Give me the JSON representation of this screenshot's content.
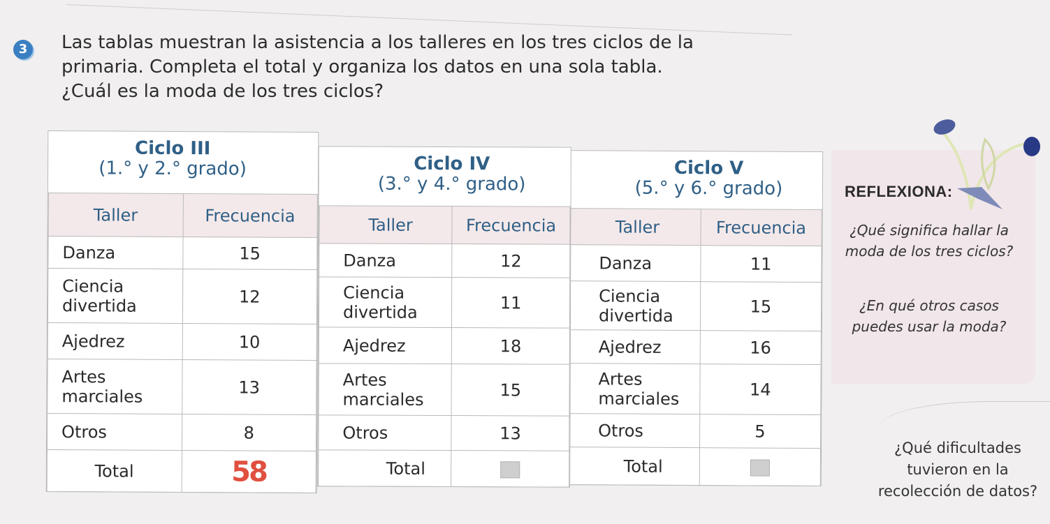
{
  "exercise": {
    "number": "3",
    "lines": [
      "Las tablas muestran la asistencia a los talleres en los tres ciclos de la",
      "primaria. Completa el total y organiza los datos en una sola tabla.",
      "¿Cuál es la moda de los tres ciclos?"
    ]
  },
  "tables": [
    {
      "name": "Ciclo III",
      "grades": "(1.° y 2.° grado)",
      "col_taller": "Taller",
      "col_frecuencia": "Frecuencia",
      "rows": [
        {
          "taller": "Danza",
          "frecuencia": "15"
        },
        {
          "taller": "Ciencia divertida",
          "frecuencia": "12"
        },
        {
          "taller": "Ajedrez",
          "frecuencia": "10"
        },
        {
          "taller": "Artes marciales",
          "frecuencia": "13"
        },
        {
          "taller": "Otros",
          "frecuencia": "8"
        }
      ],
      "total_label": "Total",
      "total_value": "58"
    },
    {
      "name": "Ciclo IV",
      "grades": "(3.° y 4.° grado)",
      "col_taller": "Taller",
      "col_frecuencia": "Frecuencia",
      "rows": [
        {
          "taller": "Danza",
          "frecuencia": "12"
        },
        {
          "taller": "Ciencia divertida",
          "frecuencia": "11"
        },
        {
          "taller": "Ajedrez",
          "frecuencia": "18"
        },
        {
          "taller": "Artes marciales",
          "frecuencia": "15"
        },
        {
          "taller": "Otros",
          "frecuencia": "13"
        }
      ],
      "total_label": "Total",
      "total_value": ""
    },
    {
      "name": "Ciclo V",
      "grades": "(5.° y 6.° grado)",
      "col_taller": "Taller",
      "col_frecuencia": "Frecuencia",
      "rows": [
        {
          "taller": "Danza",
          "frecuencia": "11"
        },
        {
          "taller": "Ciencia divertida",
          "frecuencia": "15"
        },
        {
          "taller": "Ajedrez",
          "frecuencia": "16"
        },
        {
          "taller": "Artes marciales",
          "frecuencia": "14"
        },
        {
          "taller": "Otros",
          "frecuencia": "5"
        }
      ],
      "total_label": "Total",
      "total_value": ""
    }
  ],
  "reflexiona": {
    "title": "REFLEXIONA:",
    "q1": "¿Qué significa hallar la moda de los tres ciclos?",
    "q2": "¿En qué otros casos puedes usar la moda?"
  },
  "dificultades": "¿Qué dificultades tuvieron en la recolección de datos?",
  "colors": {
    "badge": "#3a7fc1",
    "header_text": "#2f5f86",
    "header_bg": "#f4e9ea",
    "handwriting": "#e0503f",
    "reflect_bg": "#f1e6e9"
  },
  "icons": [
    "plant-sprout-icon"
  ]
}
